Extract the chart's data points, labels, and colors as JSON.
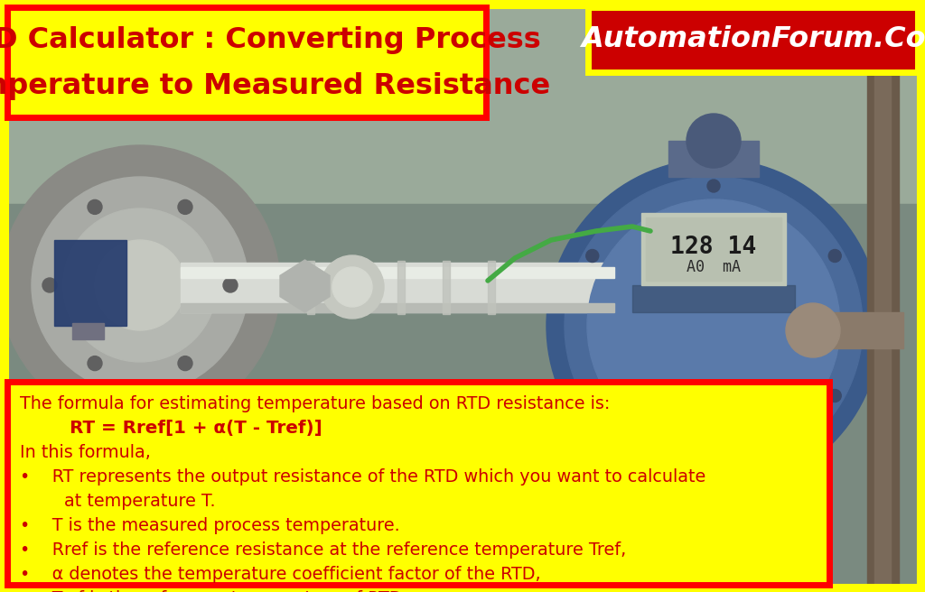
{
  "title_line1": "RTD Calculator : Converting Process",
  "title_line2": "Temperature to Measured Resistance",
  "brand": "AutomationForum.Co",
  "title_bg": "#FFFF00",
  "title_text_color": "#CC0000",
  "brand_bg": "#CC0000",
  "brand_text_color": "#FFFFFF",
  "border_color": "#FF0000",
  "bottom_bg": "#FFFF00",
  "bottom_text_color": "#CC0000",
  "bottom_border_color": "#FF0000",
  "outer_border_color": "#FFFF00",
  "formula_line1": "The formula for estimating temperature based on RTD resistance is:",
  "formula_line2": "        RT = Rref[1 + α(T - Tref)]",
  "formula_line3": "In this formula,",
  "bullet1": "•    RT represents the output resistance of the RTD which you want to calculate",
  "bullet1b": "        at temperature T.",
  "bullet2": "•    T is the measured process temperature.",
  "bullet3": "•    Rref is the reference resistance at the reference temperature Tref,",
  "bullet4": "•    α denotes the temperature coefficient factor of the RTD,",
  "bullet5": "•    Tref is the reference temperature of RTD",
  "fig_width": 10.24,
  "fig_height": 6.56,
  "dpi": 100,
  "photo_bg": "#7a8a7a",
  "photo_mid": "#8a9a9a",
  "photo_dark": "#4a5a6a",
  "photo_light": "#b0b8b0",
  "metal_light": "#c8cac8",
  "metal_dark": "#909090",
  "blue_device": "#4a6a9a",
  "blue_device2": "#3a5a8a",
  "blue_clamp": "#2a4070"
}
